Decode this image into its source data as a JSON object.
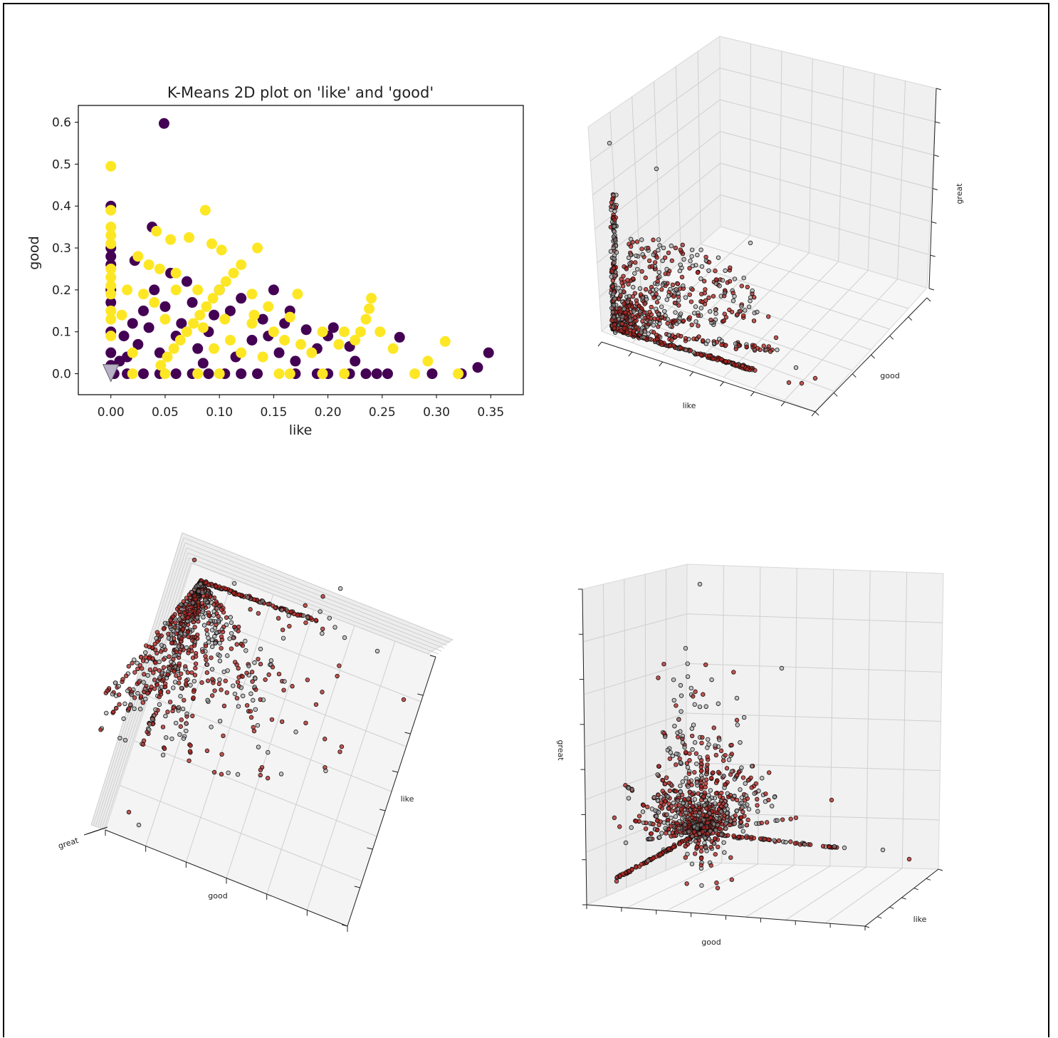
{
  "colors": {
    "cluster_0": "#440154",
    "cluster_1": "#fde725",
    "centroid": "#b8b0c8",
    "point3d_red": "#b3201c",
    "point3d_gray": "#9a9a9a",
    "pane": "#f2f2f2",
    "grid": "#cfcfcf"
  },
  "chart_data": [
    {
      "type": "scatter",
      "title": "K-Means 2D plot on 'like' and 'good'",
      "xlabel": "like",
      "ylabel": "good",
      "xlim": [
        -0.03,
        0.38
      ],
      "ylim": [
        -0.05,
        0.64
      ],
      "xticks": [
        "0.00",
        "0.05",
        "0.10",
        "0.15",
        "0.20",
        "0.25",
        "0.30",
        "0.35"
      ],
      "yticks": [
        "0.0",
        "0.1",
        "0.2",
        "0.3",
        "0.4",
        "0.5",
        "0.6"
      ],
      "grid": false,
      "series": [
        {
          "cluster": 0,
          "color": "#440154",
          "points": [
            [
              0.049,
              0.597
            ],
            [
              0.0,
              0.4
            ],
            [
              0.0,
              0.3
            ],
            [
              0.0,
              0.28
            ],
            [
              0.0,
              0.26
            ],
            [
              0.0,
              0.2
            ],
            [
              0.0,
              0.17
            ],
            [
              0.0,
              0.1
            ],
            [
              0.0,
              0.05
            ],
            [
              0.0,
              0.02
            ],
            [
              0.003,
              0.0
            ],
            [
              0.015,
              0.0
            ],
            [
              0.03,
              0.0
            ],
            [
              0.045,
              0.0
            ],
            [
              0.06,
              0.0
            ],
            [
              0.075,
              0.0
            ],
            [
              0.09,
              0.0
            ],
            [
              0.105,
              0.0
            ],
            [
              0.12,
              0.0
            ],
            [
              0.135,
              0.0
            ],
            [
              0.17,
              0.0
            ],
            [
              0.19,
              0.0
            ],
            [
              0.2,
              0.0
            ],
            [
              0.22,
              0.0
            ],
            [
              0.235,
              0.0
            ],
            [
              0.245,
              0.0
            ],
            [
              0.255,
              0.0
            ],
            [
              0.296,
              0.0
            ],
            [
              0.323,
              0.0
            ],
            [
              0.338,
              0.015
            ],
            [
              0.348,
              0.05
            ],
            [
              0.266,
              0.087
            ],
            [
              0.2,
              0.09
            ],
            [
              0.22,
              0.065
            ],
            [
              0.19,
              0.06
            ],
            [
              0.18,
              0.105
            ],
            [
              0.17,
              0.03
            ],
            [
              0.16,
              0.12
            ],
            [
              0.15,
              0.2
            ],
            [
              0.14,
              0.13
            ],
            [
              0.12,
              0.18
            ],
            [
              0.11,
              0.15
            ],
            [
              0.1,
              0.2
            ],
            [
              0.09,
              0.1
            ],
            [
              0.08,
              0.06
            ],
            [
              0.07,
              0.22
            ],
            [
              0.065,
              0.12
            ],
            [
              0.06,
              0.09
            ],
            [
              0.055,
              0.24
            ],
            [
              0.05,
              0.16
            ],
            [
              0.045,
              0.05
            ],
            [
              0.04,
              0.2
            ],
            [
              0.035,
              0.11
            ],
            [
              0.03,
              0.15
            ],
            [
              0.025,
              0.07
            ],
            [
              0.02,
              0.12
            ],
            [
              0.015,
              0.04
            ],
            [
              0.012,
              0.09
            ],
            [
              0.008,
              0.03
            ],
            [
              0.022,
              0.27
            ],
            [
              0.038,
              0.35
            ],
            [
              0.13,
              0.08
            ],
            [
              0.115,
              0.04
            ],
            [
              0.095,
              0.14
            ],
            [
              0.085,
              0.025
            ],
            [
              0.075,
              0.17
            ],
            [
              0.155,
              0.05
            ],
            [
              0.145,
              0.09
            ],
            [
              0.165,
              0.15
            ],
            [
              0.205,
              0.11
            ],
            [
              0.225,
              0.03
            ]
          ]
        },
        {
          "cluster": 1,
          "color": "#fde725",
          "points": [
            [
              0.0,
              0.495
            ],
            [
              0.0,
              0.39
            ],
            [
              0.0,
              0.35
            ],
            [
              0.0,
              0.33
            ],
            [
              0.0,
              0.31
            ],
            [
              0.0,
              0.25
            ],
            [
              0.0,
              0.23
            ],
            [
              0.0,
              0.21
            ],
            [
              0.0,
              0.19
            ],
            [
              0.0,
              0.15
            ],
            [
              0.0,
              0.13
            ],
            [
              0.0,
              0.09
            ],
            [
              0.042,
              0.34
            ],
            [
              0.087,
              0.39
            ],
            [
              0.055,
              0.32
            ],
            [
              0.072,
              0.325
            ],
            [
              0.093,
              0.31
            ],
            [
              0.102,
              0.295
            ],
            [
              0.135,
              0.3
            ],
            [
              0.12,
              0.26
            ],
            [
              0.113,
              0.24
            ],
            [
              0.106,
              0.22
            ],
            [
              0.1,
              0.2
            ],
            [
              0.094,
              0.18
            ],
            [
              0.088,
              0.16
            ],
            [
              0.082,
              0.14
            ],
            [
              0.076,
              0.12
            ],
            [
              0.07,
              0.1
            ],
            [
              0.064,
              0.08
            ],
            [
              0.058,
              0.06
            ],
            [
              0.052,
              0.04
            ],
            [
              0.046,
              0.02
            ],
            [
              0.025,
              0.28
            ],
            [
              0.035,
              0.26
            ],
            [
              0.045,
              0.25
            ],
            [
              0.06,
              0.24
            ],
            [
              0.03,
              0.19
            ],
            [
              0.04,
              0.17
            ],
            [
              0.05,
              0.13
            ],
            [
              0.06,
              0.2
            ],
            [
              0.08,
              0.2
            ],
            [
              0.13,
              0.19
            ],
            [
              0.132,
              0.14
            ],
            [
              0.145,
              0.16
            ],
            [
              0.13,
              0.12
            ],
            [
              0.15,
              0.1
            ],
            [
              0.165,
              0.135
            ],
            [
              0.172,
              0.19
            ],
            [
              0.16,
              0.08
            ],
            [
              0.175,
              0.07
            ],
            [
              0.185,
              0.05
            ],
            [
              0.195,
              0.1
            ],
            [
              0.21,
              0.07
            ],
            [
              0.215,
              0.1
            ],
            [
              0.225,
              0.08
            ],
            [
              0.23,
              0.1
            ],
            [
              0.235,
              0.13
            ],
            [
              0.238,
              0.155
            ],
            [
              0.24,
              0.18
            ],
            [
              0.248,
              0.1
            ],
            [
              0.26,
              0.06
            ],
            [
              0.292,
              0.03
            ],
            [
              0.308,
              0.077
            ],
            [
              0.32,
              0.0
            ],
            [
              0.28,
              0.0
            ],
            [
              0.215,
              0.0
            ],
            [
              0.195,
              0.0
            ],
            [
              0.165,
              0.0
            ],
            [
              0.155,
              0.0
            ],
            [
              0.1,
              0.0
            ],
            [
              0.08,
              0.0
            ],
            [
              0.05,
              0.0
            ],
            [
              0.02,
              0.0
            ],
            [
              0.015,
              0.2
            ],
            [
              0.01,
              0.14
            ],
            [
              0.02,
              0.05
            ],
            [
              0.11,
              0.08
            ],
            [
              0.12,
              0.05
            ],
            [
              0.14,
              0.04
            ],
            [
              0.095,
              0.06
            ],
            [
              0.085,
              0.11
            ],
            [
              0.105,
              0.13
            ]
          ]
        },
        {
          "name": "",
          "role": "centroid",
          "marker": "triangle-down",
          "color": "#b8b0c8",
          "points": [
            [
              0.0,
              0.0
            ]
          ]
        }
      ]
    },
    {
      "type": "scatter",
      "projection": "3d",
      "xlabel": "like",
      "ylabel": "good",
      "zlabel": "great",
      "view": "isometric",
      "series": [
        {
          "color": "#b3201c"
        },
        {
          "color": "#9a9a9a"
        }
      ]
    },
    {
      "type": "scatter",
      "projection": "3d",
      "xlabel": "like",
      "ylabel": "good",
      "zlabel": "great",
      "view": "top-down",
      "series": [
        {
          "color": "#b3201c"
        },
        {
          "color": "#9a9a9a"
        }
      ]
    },
    {
      "type": "scatter",
      "projection": "3d",
      "xlabel": "like",
      "ylabel": "good",
      "zlabel": "great",
      "view": "front",
      "series": [
        {
          "color": "#b3201c"
        },
        {
          "color": "#9a9a9a"
        }
      ]
    }
  ]
}
